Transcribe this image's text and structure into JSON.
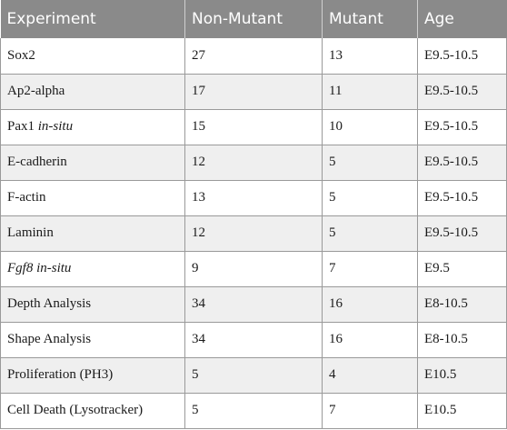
{
  "table": {
    "headers": [
      "Experiment",
      "Non-Mutant",
      "Mutant",
      "Age"
    ],
    "rows": [
      {
        "experiment": "Sox2",
        "experiment_suffix": "",
        "non_mutant": "27",
        "mutant": "13",
        "age": "E9.5-10.5"
      },
      {
        "experiment": "Ap2-alpha",
        "experiment_suffix": "",
        "non_mutant": "17",
        "mutant": "11",
        "age": "E9.5-10.5"
      },
      {
        "experiment": "Pax1",
        "experiment_suffix": "in-situ",
        "non_mutant": "15",
        "mutant": "10",
        "age": "E9.5-10.5"
      },
      {
        "experiment": "E-cadherin",
        "experiment_suffix": "",
        "non_mutant": "12",
        "mutant": "5",
        "age": "E9.5-10.5"
      },
      {
        "experiment": "F-actin",
        "experiment_suffix": "",
        "non_mutant": "13",
        "mutant": "5",
        "age": "E9.5-10.5"
      },
      {
        "experiment": "Laminin",
        "experiment_suffix": "",
        "non_mutant": "12",
        "mutant": "5",
        "age": "E9.5-10.5"
      },
      {
        "experiment": "Fgf8",
        "experiment_suffix": "in-situ",
        "non_mutant": "9",
        "mutant": "7",
        "age": "E9.5"
      },
      {
        "experiment": "Depth Analysis",
        "experiment_suffix": "",
        "non_mutant": "34",
        "mutant": "16",
        "age": "E8-10.5"
      },
      {
        "experiment": "Shape Analysis",
        "experiment_suffix": "",
        "non_mutant": "34",
        "mutant": "16",
        "age": "E8-10.5"
      },
      {
        "experiment": "Proliferation (PH3)",
        "experiment_suffix": "",
        "non_mutant": "5",
        "mutant": "4",
        "age": "E10.5"
      },
      {
        "experiment": "Cell Death (Lysotracker)",
        "experiment_suffix": "",
        "non_mutant": "5",
        "mutant": "7",
        "age": "E10.5"
      }
    ]
  }
}
